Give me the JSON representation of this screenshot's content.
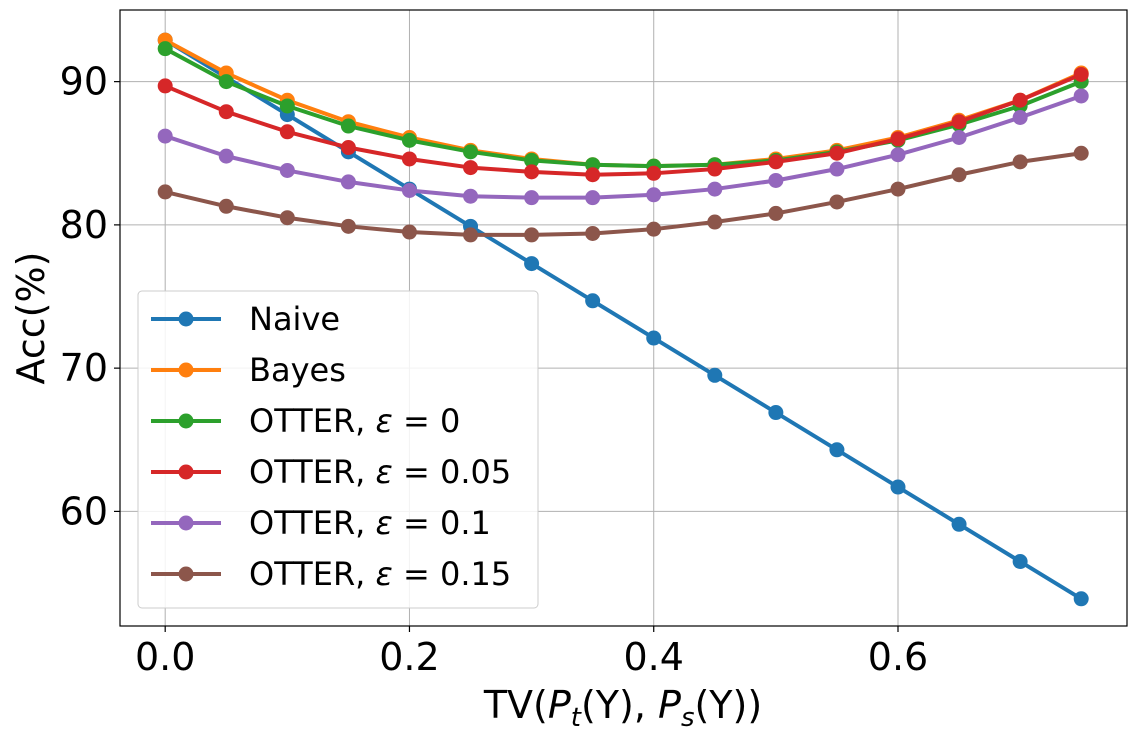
{
  "chart_data": {
    "type": "line",
    "title": "",
    "xlabel": "TV(P_t(Y), P_s(Y))",
    "xlabel_parts": {
      "pre": "TV(",
      "P1": "P",
      "sub1": "t",
      "mid1": "(Y), ",
      "P2": "P",
      "sub2": "s",
      "post": "(Y))"
    },
    "ylabel": "Acc(%)",
    "xlim": [
      -0.037,
      0.7875
    ],
    "ylim": [
      52,
      95
    ],
    "xticks": [
      0.0,
      0.2,
      0.4,
      0.6
    ],
    "xtick_labels": [
      "0.0",
      "0.2",
      "0.4",
      "0.6"
    ],
    "yticks": [
      60,
      70,
      80,
      90
    ],
    "ytick_labels": [
      "60",
      "70",
      "80",
      "90"
    ],
    "grid": true,
    "legend_position": "lower-left",
    "x": [
      0.0,
      0.05,
      0.1,
      0.15,
      0.2,
      0.25,
      0.3,
      0.35,
      0.4,
      0.45,
      0.5,
      0.55,
      0.6,
      0.65,
      0.7,
      0.75
    ],
    "series": [
      {
        "name": "Naive",
        "legend_main": "Naive",
        "legend_eps": "",
        "color": "#1f77b4",
        "values": [
          92.9,
          90.3,
          87.7,
          85.1,
          82.5,
          79.9,
          77.3,
          74.7,
          72.1,
          69.5,
          66.9,
          64.3,
          61.7,
          59.1,
          56.5,
          53.9
        ]
      },
      {
        "name": "Bayes",
        "legend_main": "Bayes",
        "legend_eps": "",
        "color": "#ff7f0e",
        "values": [
          92.9,
          90.6,
          88.7,
          87.2,
          86.1,
          85.2,
          84.6,
          84.2,
          84.1,
          84.2,
          84.6,
          85.2,
          86.1,
          87.3,
          88.7,
          90.6
        ]
      },
      {
        "name": "OTTER, ε = 0",
        "legend_main": "OTTER, ",
        "legend_eps": "= 0",
        "color": "#2ca02c",
        "values": [
          92.3,
          90.0,
          88.3,
          86.9,
          85.9,
          85.1,
          84.5,
          84.2,
          84.1,
          84.2,
          84.5,
          85.1,
          85.9,
          87.0,
          88.3,
          90.0
        ]
      },
      {
        "name": "OTTER, ε = 0.05",
        "legend_main": "OTTER, ",
        "legend_eps": "= 0.05",
        "color": "#d62728",
        "values": [
          89.7,
          87.9,
          86.5,
          85.4,
          84.6,
          84.0,
          83.7,
          83.5,
          83.6,
          83.9,
          84.4,
          85.0,
          86.0,
          87.2,
          88.7,
          90.5
        ]
      },
      {
        "name": "OTTER, ε = 0.1",
        "legend_main": "OTTER, ",
        "legend_eps": "= 0.1",
        "color": "#9467bd",
        "values": [
          86.2,
          84.8,
          83.8,
          83.0,
          82.4,
          82.0,
          81.9,
          81.9,
          82.1,
          82.5,
          83.1,
          83.9,
          84.9,
          86.1,
          87.5,
          89.0
        ]
      },
      {
        "name": "OTTER, ε = 0.15",
        "legend_main": "OTTER, ",
        "legend_eps": "= 0.15",
        "color": "#8c564b",
        "values": [
          82.3,
          81.3,
          80.5,
          79.9,
          79.5,
          79.3,
          79.3,
          79.4,
          79.7,
          80.2,
          80.8,
          81.6,
          82.5,
          83.5,
          84.4,
          85.0
        ]
      }
    ],
    "epsilon_symbol": "ε"
  }
}
